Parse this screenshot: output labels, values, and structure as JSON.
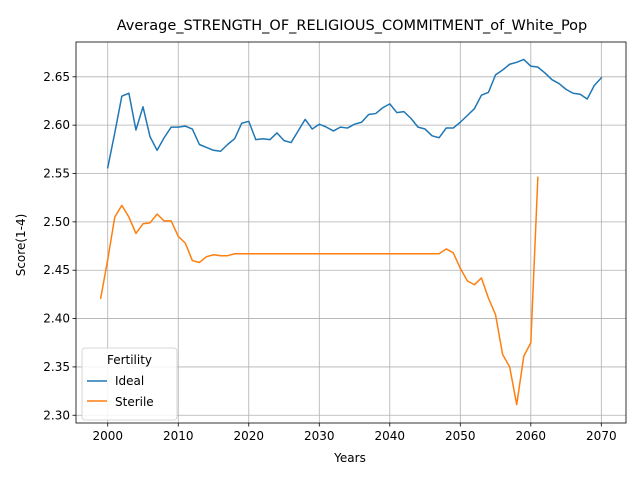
{
  "chart_data": {
    "type": "line",
    "title": "Average_STRENGTH_OF_RELIGIOUS_COMMITMENT_of_White_Pop",
    "xlabel": "Years",
    "ylabel": "Score(1-4)",
    "xlim": [
      1995.5,
      2073.5
    ],
    "ylim": [
      2.292,
      2.686
    ],
    "xticks": [
      2000,
      2010,
      2020,
      2030,
      2040,
      2050,
      2060,
      2070
    ],
    "yticks": [
      2.3,
      2.35,
      2.4,
      2.45,
      2.5,
      2.55,
      2.6,
      2.65
    ],
    "grid": true,
    "legend": {
      "title": "Fertility",
      "placement": "lower-left"
    },
    "colors": {
      "Ideal": "#1f77b4",
      "Sterile": "#ff7f0e"
    },
    "series": [
      {
        "name": "Ideal",
        "x": [
          2000,
          2001,
          2002,
          2003,
          2004,
          2005,
          2006,
          2007,
          2008,
          2009,
          2010,
          2011,
          2012,
          2013,
          2014,
          2015,
          2016,
          2017,
          2018,
          2019,
          2020,
          2021,
          2022,
          2023,
          2024,
          2025,
          2026,
          2027,
          2028,
          2029,
          2030,
          2031,
          2032,
          2033,
          2034,
          2035,
          2036,
          2037,
          2038,
          2039,
          2040,
          2041,
          2042,
          2043,
          2044,
          2045,
          2046,
          2047,
          2048,
          2049,
          2050,
          2051,
          2052,
          2053,
          2054,
          2055,
          2056,
          2057,
          2058,
          2059,
          2060,
          2061,
          2062,
          2063,
          2064,
          2065,
          2066,
          2067,
          2068,
          2069,
          2070
        ],
        "values": [
          2.556,
          2.592,
          2.63,
          2.633,
          2.595,
          2.619,
          2.588,
          2.574,
          2.587,
          2.598,
          2.598,
          2.599,
          2.596,
          2.58,
          2.577,
          2.574,
          2.573,
          2.58,
          2.586,
          2.602,
          2.604,
          2.585,
          2.586,
          2.585,
          2.592,
          2.584,
          2.582,
          2.594,
          2.606,
          2.596,
          2.601,
          2.598,
          2.594,
          2.598,
          2.597,
          2.601,
          2.603,
          2.611,
          2.612,
          2.618,
          2.622,
          2.613,
          2.614,
          2.607,
          2.598,
          2.596,
          2.589,
          2.587,
          2.597,
          2.597,
          2.603,
          2.61,
          2.617,
          2.631,
          2.634,
          2.652,
          2.657,
          2.663,
          2.665,
          2.668,
          2.661,
          2.66,
          2.654,
          2.647,
          2.643,
          2.637,
          2.633,
          2.632,
          2.627,
          2.641,
          2.649
        ]
      },
      {
        "name": "Sterile",
        "x": [
          1999,
          2000,
          2001,
          2002,
          2003,
          2004,
          2005,
          2006,
          2007,
          2008,
          2009,
          2010,
          2011,
          2012,
          2013,
          2014,
          2015,
          2016,
          2017,
          2018,
          2019,
          2020,
          2021,
          2022,
          2023,
          2024,
          2025,
          2026,
          2027,
          2028,
          2029,
          2030,
          2031,
          2032,
          2033,
          2034,
          2035,
          2036,
          2037,
          2038,
          2039,
          2040,
          2041,
          2042,
          2043,
          2044,
          2045,
          2046,
          2047,
          2048,
          2049,
          2050,
          2051,
          2052,
          2053,
          2054,
          2055,
          2056,
          2057,
          2058,
          2059,
          2060,
          2061
        ],
        "values": [
          2.421,
          2.461,
          2.505,
          2.517,
          2.505,
          2.488,
          2.498,
          2.499,
          2.508,
          2.501,
          2.501,
          2.485,
          2.478,
          2.46,
          2.458,
          2.464,
          2.466,
          2.465,
          2.465,
          2.467,
          2.467,
          2.467,
          2.467,
          2.467,
          2.467,
          2.467,
          2.467,
          2.467,
          2.467,
          2.467,
          2.467,
          2.467,
          2.467,
          2.467,
          2.467,
          2.467,
          2.467,
          2.467,
          2.467,
          2.467,
          2.467,
          2.467,
          2.467,
          2.467,
          2.467,
          2.467,
          2.467,
          2.467,
          2.467,
          2.472,
          2.468,
          2.452,
          2.439,
          2.435,
          2.442,
          2.421,
          2.404,
          2.363,
          2.35,
          2.311,
          2.361,
          2.375,
          2.546
        ]
      }
    ]
  }
}
